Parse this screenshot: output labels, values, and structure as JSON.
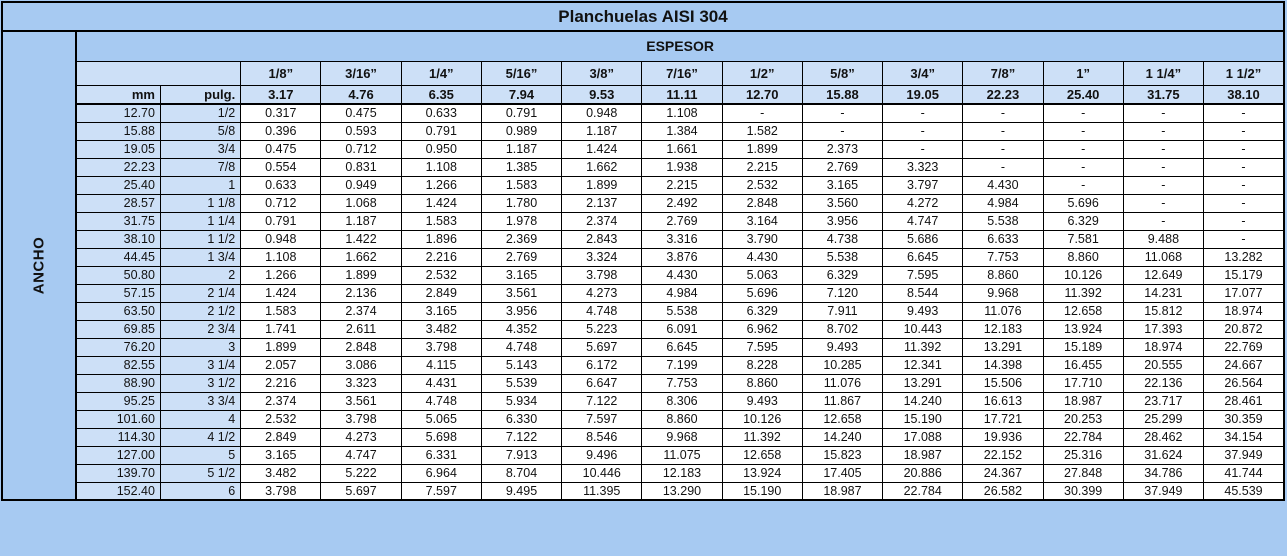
{
  "title": "Planchuelas AISI 304",
  "colors": {
    "panel_blue": "#A7CAF2",
    "header_blue": "#CDE0F7",
    "cell_white": "#FFFFFF",
    "border": "#000000"
  },
  "table": {
    "espesor_label": "ESPESOR",
    "ancho_label": "ANCHO",
    "mm_label": "mm",
    "pulg_label": "pulg.",
    "thickness_in": [
      "1/8”",
      "3/16”",
      "1/4”",
      "5/16”",
      "3/8”",
      "7/16”",
      "1/2”",
      "5/8”",
      "3/4”",
      "7/8”",
      "1”",
      "1 1/4”",
      "1 1/2”"
    ],
    "thickness_mm": [
      "3.17",
      "4.76",
      "6.35",
      "7.94",
      "9.53",
      "11.11",
      "12.70",
      "15.88",
      "19.05",
      "22.23",
      "25.40",
      "31.75",
      "38.10"
    ],
    "rows": [
      {
        "mm": "12.70",
        "pulg": "1/2",
        "values": [
          "0.317",
          "0.475",
          "0.633",
          "0.791",
          "0.948",
          "1.108",
          "-",
          "-",
          "-",
          "-",
          "-",
          "-",
          "-"
        ]
      },
      {
        "mm": "15.88",
        "pulg": "5/8",
        "values": [
          "0.396",
          "0.593",
          "0.791",
          "0.989",
          "1.187",
          "1.384",
          "1.582",
          "-",
          "-",
          "-",
          "-",
          "-",
          "-"
        ]
      },
      {
        "mm": "19.05",
        "pulg": "3/4",
        "values": [
          "0.475",
          "0.712",
          "0.950",
          "1.187",
          "1.424",
          "1.661",
          "1.899",
          "2.373",
          "-",
          "-",
          "-",
          "-",
          "-"
        ]
      },
      {
        "mm": "22.23",
        "pulg": "7/8",
        "values": [
          "0.554",
          "0.831",
          "1.108",
          "1.385",
          "1.662",
          "1.938",
          "2.215",
          "2.769",
          "3.323",
          "-",
          "-",
          "-",
          "-"
        ]
      },
      {
        "mm": "25.40",
        "pulg": "1",
        "values": [
          "0.633",
          "0.949",
          "1.266",
          "1.583",
          "1.899",
          "2.215",
          "2.532",
          "3.165",
          "3.797",
          "4.430",
          "-",
          "-",
          "-"
        ]
      },
      {
        "mm": "28.57",
        "pulg": "1 1/8",
        "values": [
          "0.712",
          "1.068",
          "1.424",
          "1.780",
          "2.137",
          "2.492",
          "2.848",
          "3.560",
          "4.272",
          "4.984",
          "5.696",
          "-",
          "-"
        ]
      },
      {
        "mm": "31.75",
        "pulg": "1 1/4",
        "values": [
          "0.791",
          "1.187",
          "1.583",
          "1.978",
          "2.374",
          "2.769",
          "3.164",
          "3.956",
          "4.747",
          "5.538",
          "6.329",
          "-",
          "-"
        ]
      },
      {
        "mm": "38.10",
        "pulg": "1 1/2",
        "values": [
          "0.948",
          "1.422",
          "1.896",
          "2.369",
          "2.843",
          "3.316",
          "3.790",
          "4.738",
          "5.686",
          "6.633",
          "7.581",
          "9.488",
          "-"
        ]
      },
      {
        "mm": "44.45",
        "pulg": "1 3/4",
        "values": [
          "1.108",
          "1.662",
          "2.216",
          "2.769",
          "3.324",
          "3.876",
          "4.430",
          "5.538",
          "6.645",
          "7.753",
          "8.860",
          "11.068",
          "13.282"
        ]
      },
      {
        "mm": "50.80",
        "pulg": "2",
        "values": [
          "1.266",
          "1.899",
          "2.532",
          "3.165",
          "3.798",
          "4.430",
          "5.063",
          "6.329",
          "7.595",
          "8.860",
          "10.126",
          "12.649",
          "15.179"
        ]
      },
      {
        "mm": "57.15",
        "pulg": "2 1/4",
        "values": [
          "1.424",
          "2.136",
          "2.849",
          "3.561",
          "4.273",
          "4.984",
          "5.696",
          "7.120",
          "8.544",
          "9.968",
          "11.392",
          "14.231",
          "17.077"
        ]
      },
      {
        "mm": "63.50",
        "pulg": "2 1/2",
        "values": [
          "1.583",
          "2.374",
          "3.165",
          "3.956",
          "4.748",
          "5.538",
          "6.329",
          "7.911",
          "9.493",
          "11.076",
          "12.658",
          "15.812",
          "18.974"
        ]
      },
      {
        "mm": "69.85",
        "pulg": "2 3/4",
        "values": [
          "1.741",
          "2.611",
          "3.482",
          "4.352",
          "5.223",
          "6.091",
          "6.962",
          "8.702",
          "10.443",
          "12.183",
          "13.924",
          "17.393",
          "20.872"
        ]
      },
      {
        "mm": "76.20",
        "pulg": "3",
        "values": [
          "1.899",
          "2.848",
          "3.798",
          "4.748",
          "5.697",
          "6.645",
          "7.595",
          "9.493",
          "11.392",
          "13.291",
          "15.189",
          "18.974",
          "22.769"
        ]
      },
      {
        "mm": "82.55",
        "pulg": "3 1/4",
        "values": [
          "2.057",
          "3.086",
          "4.115",
          "5.143",
          "6.172",
          "7.199",
          "8.228",
          "10.285",
          "12.341",
          "14.398",
          "16.455",
          "20.555",
          "24.667"
        ]
      },
      {
        "mm": "88.90",
        "pulg": "3 1/2",
        "values": [
          "2.216",
          "3.323",
          "4.431",
          "5.539",
          "6.647",
          "7.753",
          "8.860",
          "11.076",
          "13.291",
          "15.506",
          "17.710",
          "22.136",
          "26.564"
        ]
      },
      {
        "mm": "95.25",
        "pulg": "3 3/4",
        "values": [
          "2.374",
          "3.561",
          "4.748",
          "5.934",
          "7.122",
          "8.306",
          "9.493",
          "11.867",
          "14.240",
          "16.613",
          "18.987",
          "23.717",
          "28.461"
        ]
      },
      {
        "mm": "101.60",
        "pulg": "4",
        "values": [
          "2.532",
          "3.798",
          "5.065",
          "6.330",
          "7.597",
          "8.860",
          "10.126",
          "12.658",
          "15.190",
          "17.721",
          "20.253",
          "25.299",
          "30.359"
        ]
      },
      {
        "mm": "114.30",
        "pulg": "4 1/2",
        "values": [
          "2.849",
          "4.273",
          "5.698",
          "7.122",
          "8.546",
          "9.968",
          "11.392",
          "14.240",
          "17.088",
          "19.936",
          "22.784",
          "28.462",
          "34.154"
        ]
      },
      {
        "mm": "127.00",
        "pulg": "5",
        "values": [
          "3.165",
          "4.747",
          "6.331",
          "7.913",
          "9.496",
          "11.075",
          "12.658",
          "15.823",
          "18.987",
          "22.152",
          "25.316",
          "31.624",
          "37.949"
        ]
      },
      {
        "mm": "139.70",
        "pulg": "5 1/2",
        "values": [
          "3.482",
          "5.222",
          "6.964",
          "8.704",
          "10.446",
          "12.183",
          "13.924",
          "17.405",
          "20.886",
          "24.367",
          "27.848",
          "34.786",
          "41.744"
        ]
      },
      {
        "mm": "152.40",
        "pulg": "6",
        "values": [
          "3.798",
          "5.697",
          "7.597",
          "9.495",
          "11.395",
          "13.290",
          "15.190",
          "18.987",
          "22.784",
          "26.582",
          "30.399",
          "37.949",
          "45.539"
        ]
      }
    ]
  }
}
